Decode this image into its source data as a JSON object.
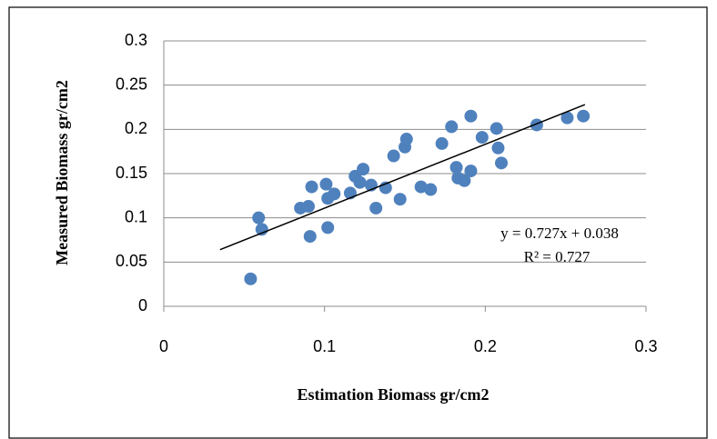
{
  "chart_data": {
    "type": "scatter",
    "x_label": "Estimation Biomass gr/cm2",
    "y_label": "Measured Biomass gr/cm2",
    "color": "#4f81bd",
    "grid": true,
    "xlim": [
      0,
      0.3
    ],
    "xticks": [
      0,
      0.1,
      0.2,
      0.3
    ],
    "ylim": [
      0,
      0.3
    ],
    "yticks": [
      0,
      0.05,
      0.1,
      0.15,
      0.2,
      0.25,
      0.3
    ],
    "x": [
      0.054,
      0.059,
      0.061,
      0.085,
      0.09,
      0.092,
      0.091,
      0.101,
      0.102,
      0.106,
      0.102,
      0.116,
      0.119,
      0.122,
      0.124,
      0.129,
      0.132,
      0.138,
      0.143,
      0.147,
      0.15,
      0.151,
      0.16,
      0.166,
      0.173,
      0.179,
      0.182,
      0.183,
      0.187,
      0.191,
      0.191,
      0.198,
      0.207,
      0.208,
      0.21,
      0.232,
      0.251,
      0.261
    ],
    "values": [
      0.031,
      0.1,
      0.087,
      0.111,
      0.113,
      0.135,
      0.079,
      0.138,
      0.122,
      0.127,
      0.089,
      0.128,
      0.147,
      0.14,
      0.155,
      0.137,
      0.111,
      0.134,
      0.17,
      0.121,
      0.18,
      0.189,
      0.135,
      0.132,
      0.184,
      0.203,
      0.157,
      0.145,
      0.142,
      0.153,
      0.215,
      0.191,
      0.201,
      0.179,
      0.162,
      0.205,
      0.213,
      0.215
    ],
    "trendline": {
      "x": [
        0.035,
        0.262
      ],
      "y": [
        0.064,
        0.228
      ],
      "equation": "y = 0.727x + 0.038",
      "r_squared": "R² = 0.727"
    }
  }
}
